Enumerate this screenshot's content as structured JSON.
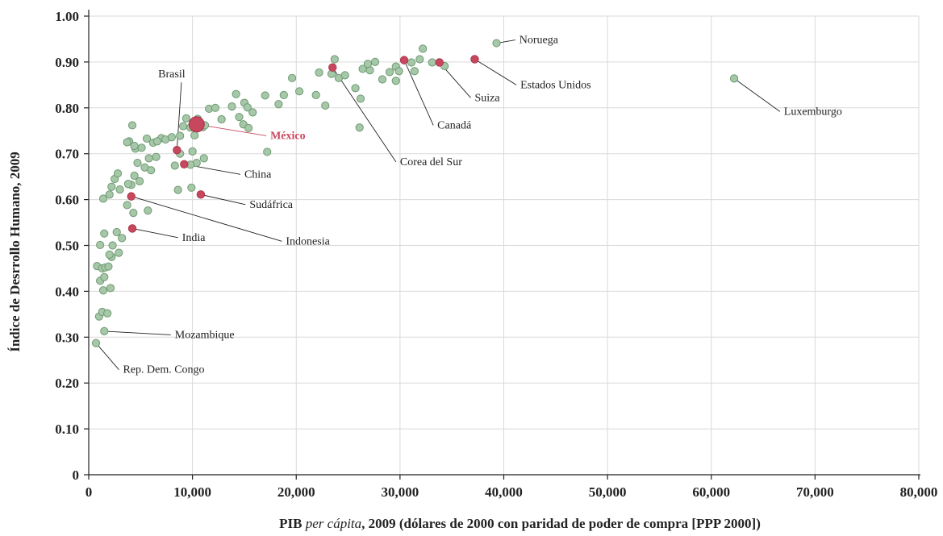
{
  "chart_data": {
    "type": "scatter",
    "title": "",
    "xlabel_prefix": "PIB ",
    "xlabel_italic": "per cápita",
    "xlabel_suffix": ", 2009 (dólares de 2000 con paridad de poder de compra [PPP 2000])",
    "ylabel": "Índice de Desrrollo Humano, 2009",
    "xlim": [
      0,
      80000
    ],
    "ylim": [
      0,
      1.0
    ],
    "x_ticks": [
      0,
      10000,
      20000,
      30000,
      40000,
      50000,
      60000,
      70000,
      80000
    ],
    "x_tick_labels": [
      "0",
      "10,000",
      "20,000",
      "30,000",
      "40,000",
      "50,000",
      "60,000",
      "70,000",
      "80,000"
    ],
    "y_ticks": [
      0,
      0.1,
      0.2,
      0.3,
      0.4,
      0.5,
      0.6,
      0.7,
      0.8,
      0.9,
      1.0
    ],
    "y_tick_labels": [
      "0",
      "0.10",
      "0.20",
      "0.30",
      "0.40",
      "0.50",
      "0.60",
      "0.70",
      "0.80",
      "0.90",
      "1.00"
    ],
    "grid": true,
    "colors": {
      "base": "#a6c8a8",
      "base_stroke": "#6e9a73",
      "highlight": "#c8475e"
    },
    "points": [
      [
        700,
        0.287
      ],
      [
        1500,
        0.313
      ],
      [
        1000,
        0.345
      ],
      [
        1300,
        0.355
      ],
      [
        1800,
        0.352
      ],
      [
        2100,
        0.407
      ],
      [
        1400,
        0.402
      ],
      [
        1100,
        0.423
      ],
      [
        1500,
        0.431
      ],
      [
        800,
        0.455
      ],
      [
        1300,
        0.45
      ],
      [
        1600,
        0.452
      ],
      [
        1900,
        0.454
      ],
      [
        2200,
        0.475
      ],
      [
        2000,
        0.48
      ],
      [
        2900,
        0.484
      ],
      [
        2300,
        0.5
      ],
      [
        1100,
        0.501
      ],
      [
        3200,
        0.516
      ],
      [
        2700,
        0.529
      ],
      [
        1500,
        0.526
      ],
      [
        3700,
        0.588
      ],
      [
        4300,
        0.571
      ],
      [
        5700,
        0.576
      ],
      [
        1400,
        0.602
      ],
      [
        2000,
        0.611
      ],
      [
        3000,
        0.622
      ],
      [
        2200,
        0.628
      ],
      [
        2500,
        0.645
      ],
      [
        2800,
        0.657
      ],
      [
        4400,
        0.652
      ],
      [
        4100,
        0.632
      ],
      [
        3800,
        0.634
      ],
      [
        4900,
        0.64
      ],
      [
        4700,
        0.68
      ],
      [
        5400,
        0.67
      ],
      [
        6000,
        0.664
      ],
      [
        5800,
        0.69
      ],
      [
        6500,
        0.693
      ],
      [
        6200,
        0.724
      ],
      [
        7000,
        0.734
      ],
      [
        6600,
        0.727
      ],
      [
        5600,
        0.733
      ],
      [
        4500,
        0.711
      ],
      [
        3900,
        0.727
      ],
      [
        4400,
        0.717
      ],
      [
        4200,
        0.762
      ],
      [
        3700,
        0.725
      ],
      [
        5100,
        0.713
      ],
      [
        7400,
        0.731
      ],
      [
        8000,
        0.736
      ],
      [
        8800,
        0.7
      ],
      [
        8300,
        0.674
      ],
      [
        8800,
        0.739
      ],
      [
        9400,
        0.777
      ],
      [
        9100,
        0.76
      ],
      [
        9800,
        0.757
      ],
      [
        10200,
        0.74
      ],
      [
        10500,
        0.776
      ],
      [
        11000,
        0.758
      ],
      [
        11200,
        0.762
      ],
      [
        10000,
        0.705
      ],
      [
        11100,
        0.69
      ],
      [
        10400,
        0.68
      ],
      [
        9800,
        0.676
      ],
      [
        8600,
        0.621
      ],
      [
        9900,
        0.626
      ],
      [
        12800,
        0.775
      ],
      [
        11600,
        0.798
      ],
      [
        12200,
        0.8
      ],
      [
        14200,
        0.83
      ],
      [
        13800,
        0.803
      ],
      [
        14500,
        0.78
      ],
      [
        15000,
        0.811
      ],
      [
        15300,
        0.801
      ],
      [
        15800,
        0.79
      ],
      [
        14900,
        0.764
      ],
      [
        15400,
        0.756
      ],
      [
        17200,
        0.704
      ],
      [
        17000,
        0.827
      ],
      [
        18300,
        0.808
      ],
      [
        18800,
        0.828
      ],
      [
        19600,
        0.865
      ],
      [
        20300,
        0.836
      ],
      [
        21900,
        0.828
      ],
      [
        22200,
        0.877
      ],
      [
        23400,
        0.874
      ],
      [
        24100,
        0.865
      ],
      [
        22800,
        0.805
      ],
      [
        23700,
        0.906
      ],
      [
        24700,
        0.871
      ],
      [
        25700,
        0.843
      ],
      [
        26200,
        0.82
      ],
      [
        26100,
        0.757
      ],
      [
        26400,
        0.885
      ],
      [
        27100,
        0.882
      ],
      [
        26900,
        0.896
      ],
      [
        27600,
        0.9
      ],
      [
        28300,
        0.862
      ],
      [
        29000,
        0.878
      ],
      [
        29600,
        0.89
      ],
      [
        29900,
        0.88
      ],
      [
        29600,
        0.859
      ],
      [
        31100,
        0.899
      ],
      [
        31400,
        0.88
      ],
      [
        31900,
        0.906
      ],
      [
        32200,
        0.929
      ],
      [
        33100,
        0.899
      ],
      [
        34300,
        0.891
      ],
      [
        39300,
        0.941
      ],
      [
        62200,
        0.864
      ]
    ],
    "highlighted": [
      {
        "x": 23500,
        "y": 0.888
      },
      {
        "x": 30400,
        "y": 0.904
      },
      {
        "x": 33800,
        "y": 0.899
      },
      {
        "x": 37200,
        "y": 0.906
      },
      {
        "x": 8500,
        "y": 0.708
      },
      {
        "x": 9200,
        "y": 0.677
      },
      {
        "x": 10800,
        "y": 0.611
      },
      {
        "x": 4100,
        "y": 0.607
      },
      {
        "x": 4200,
        "y": 0.537
      }
    ],
    "featured": {
      "x": 10400,
      "y": 0.764
    },
    "annotations": [
      {
        "text": "Noruega",
        "x": 39300,
        "y": 0.941,
        "lx": 41500,
        "ly": 0.941,
        "anchor": "start",
        "hl": false
      },
      {
        "text": "Estados Unidos",
        "x": 37200,
        "y": 0.906,
        "lx": 41600,
        "ly": 0.843,
        "anchor": "start",
        "hl": false
      },
      {
        "text": "Suiza",
        "x": 33800,
        "y": 0.899,
        "lx": 37200,
        "ly": 0.815,
        "anchor": "start",
        "hl": false
      },
      {
        "text": "Canadá",
        "x": 30400,
        "y": 0.904,
        "lx": 33600,
        "ly": 0.755,
        "anchor": "start",
        "hl": false
      },
      {
        "text": "Corea del Sur",
        "x": 23500,
        "y": 0.888,
        "lx": 30000,
        "ly": 0.675,
        "anchor": "start",
        "hl": false
      },
      {
        "text": "Luxemburgo",
        "x": 62200,
        "y": 0.864,
        "lx": 67000,
        "ly": 0.785,
        "anchor": "start",
        "hl": false
      },
      {
        "text": "Brasil",
        "x": 8500,
        "y": 0.708,
        "lx": 8000,
        "ly": 0.866,
        "anchor": "middle",
        "hl": false
      },
      {
        "text": "México",
        "x": 10400,
        "y": 0.764,
        "lx": 17500,
        "ly": 0.732,
        "anchor": "start",
        "hl": true
      },
      {
        "text": "China",
        "x": 9200,
        "y": 0.677,
        "lx": 15000,
        "ly": 0.648,
        "anchor": "start",
        "hl": false
      },
      {
        "text": "Sudáfrica",
        "x": 10800,
        "y": 0.611,
        "lx": 15500,
        "ly": 0.582,
        "anchor": "start",
        "hl": false
      },
      {
        "text": "Indonesia",
        "x": 4100,
        "y": 0.607,
        "lx": 19000,
        "ly": 0.502,
        "anchor": "start",
        "hl": false
      },
      {
        "text": "India",
        "x": 4200,
        "y": 0.537,
        "lx": 9000,
        "ly": 0.51,
        "anchor": "start",
        "hl": false
      },
      {
        "text": "Mozambique",
        "x": 1500,
        "y": 0.313,
        "lx": 8300,
        "ly": 0.298,
        "anchor": "start",
        "hl": false
      },
      {
        "text": "Rep. Dem. Congo",
        "x": 700,
        "y": 0.287,
        "lx": 3300,
        "ly": 0.222,
        "anchor": "start",
        "hl": false
      }
    ]
  }
}
